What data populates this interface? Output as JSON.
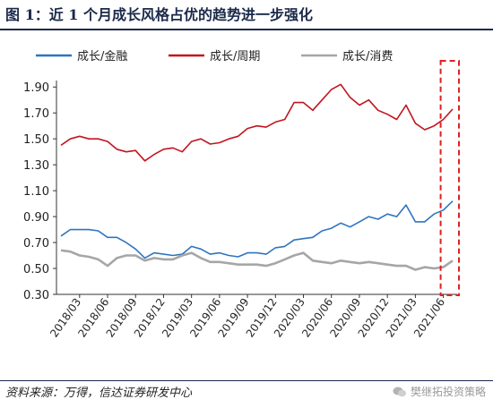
{
  "title": "图 1：近 1 个月成长风格占优的趋势进一步强化",
  "source": "资料来源：万得，信达证券研发中心",
  "watermark": "樊继拓投资策略",
  "chart_data": {
    "type": "line",
    "ylim": [
      0.3,
      1.95
    ],
    "yticks": [
      "0.30",
      "0.50",
      "0.70",
      "0.90",
      "1.10",
      "1.30",
      "1.50",
      "1.70",
      "1.90"
    ],
    "x_dates": [
      "2018/03",
      "2018/06",
      "2018/09",
      "2018/12",
      "2019/03",
      "2019/06",
      "2019/09",
      "2019/12",
      "2020/03",
      "2020/06",
      "2020/09",
      "2020/12",
      "2021/03",
      "2021/06"
    ],
    "highlight_box": {
      "from": "2021/06",
      "to": "2021/07",
      "color": "#e02020"
    },
    "series": [
      {
        "name": "成长/金融",
        "color": "#2f74c0",
        "points": [
          [
            "2018/01",
            0.75
          ],
          [
            "2018/02",
            0.8
          ],
          [
            "2018/03",
            0.8
          ],
          [
            "2018/04",
            0.8
          ],
          [
            "2018/05",
            0.79
          ],
          [
            "2018/06",
            0.74
          ],
          [
            "2018/07",
            0.74
          ],
          [
            "2018/08",
            0.7
          ],
          [
            "2018/09",
            0.65
          ],
          [
            "2018/10",
            0.58
          ],
          [
            "2018/11",
            0.62
          ],
          [
            "2018/12",
            0.61
          ],
          [
            "2019/01",
            0.6
          ],
          [
            "2019/02",
            0.61
          ],
          [
            "2019/03",
            0.67
          ],
          [
            "2019/04",
            0.65
          ],
          [
            "2019/05",
            0.61
          ],
          [
            "2019/06",
            0.62
          ],
          [
            "2019/07",
            0.6
          ],
          [
            "2019/08",
            0.59
          ],
          [
            "2019/09",
            0.62
          ],
          [
            "2019/10",
            0.62
          ],
          [
            "2019/11",
            0.61
          ],
          [
            "2019/12",
            0.66
          ],
          [
            "2020/01",
            0.67
          ],
          [
            "2020/02",
            0.72
          ],
          [
            "2020/03",
            0.73
          ],
          [
            "2020/04",
            0.74
          ],
          [
            "2020/05",
            0.79
          ],
          [
            "2020/06",
            0.81
          ],
          [
            "2020/07",
            0.85
          ],
          [
            "2020/08",
            0.82
          ],
          [
            "2020/09",
            0.86
          ],
          [
            "2020/10",
            0.9
          ],
          [
            "2020/11",
            0.88
          ],
          [
            "2020/12",
            0.92
          ],
          [
            "2021/01",
            0.9
          ],
          [
            "2021/02",
            0.99
          ],
          [
            "2021/03",
            0.86
          ],
          [
            "2021/04",
            0.86
          ],
          [
            "2021/05",
            0.92
          ],
          [
            "2021/06",
            0.95
          ],
          [
            "2021/07",
            1.02
          ]
        ]
      },
      {
        "name": "成长/周期",
        "color": "#c0161f",
        "points": [
          [
            "2018/01",
            1.45
          ],
          [
            "2018/02",
            1.5
          ],
          [
            "2018/03",
            1.52
          ],
          [
            "2018/04",
            1.5
          ],
          [
            "2018/05",
            1.5
          ],
          [
            "2018/06",
            1.48
          ],
          [
            "2018/07",
            1.42
          ],
          [
            "2018/08",
            1.4
          ],
          [
            "2018/09",
            1.41
          ],
          [
            "2018/10",
            1.33
          ],
          [
            "2018/11",
            1.38
          ],
          [
            "2018/12",
            1.42
          ],
          [
            "2019/01",
            1.43
          ],
          [
            "2019/02",
            1.4
          ],
          [
            "2019/03",
            1.48
          ],
          [
            "2019/04",
            1.5
          ],
          [
            "2019/05",
            1.46
          ],
          [
            "2019/06",
            1.47
          ],
          [
            "2019/07",
            1.5
          ],
          [
            "2019/08",
            1.52
          ],
          [
            "2019/09",
            1.58
          ],
          [
            "2019/10",
            1.6
          ],
          [
            "2019/11",
            1.59
          ],
          [
            "2019/12",
            1.63
          ],
          [
            "2020/01",
            1.65
          ],
          [
            "2020/02",
            1.78
          ],
          [
            "2020/03",
            1.78
          ],
          [
            "2020/04",
            1.72
          ],
          [
            "2020/05",
            1.8
          ],
          [
            "2020/06",
            1.88
          ],
          [
            "2020/07",
            1.92
          ],
          [
            "2020/08",
            1.82
          ],
          [
            "2020/09",
            1.76
          ],
          [
            "2020/10",
            1.8
          ],
          [
            "2020/11",
            1.72
          ],
          [
            "2020/12",
            1.69
          ],
          [
            "2021/01",
            1.65
          ],
          [
            "2021/02",
            1.76
          ],
          [
            "2021/03",
            1.62
          ],
          [
            "2021/04",
            1.57
          ],
          [
            "2021/05",
            1.6
          ],
          [
            "2021/06",
            1.65
          ],
          [
            "2021/07",
            1.73
          ]
        ]
      },
      {
        "name": "成长/消费",
        "color": "#a6a6a6",
        "points": [
          [
            "2018/01",
            0.64
          ],
          [
            "2018/02",
            0.63
          ],
          [
            "2018/03",
            0.6
          ],
          [
            "2018/04",
            0.59
          ],
          [
            "2018/05",
            0.57
          ],
          [
            "2018/06",
            0.52
          ],
          [
            "2018/07",
            0.58
          ],
          [
            "2018/08",
            0.6
          ],
          [
            "2018/09",
            0.6
          ],
          [
            "2018/10",
            0.56
          ],
          [
            "2018/11",
            0.58
          ],
          [
            "2018/12",
            0.57
          ],
          [
            "2019/01",
            0.57
          ],
          [
            "2019/02",
            0.6
          ],
          [
            "2019/03",
            0.62
          ],
          [
            "2019/04",
            0.58
          ],
          [
            "2019/05",
            0.55
          ],
          [
            "2019/06",
            0.55
          ],
          [
            "2019/07",
            0.54
          ],
          [
            "2019/08",
            0.53
          ],
          [
            "2019/09",
            0.53
          ],
          [
            "2019/10",
            0.53
          ],
          [
            "2019/11",
            0.52
          ],
          [
            "2019/12",
            0.54
          ],
          [
            "2020/01",
            0.57
          ],
          [
            "2020/02",
            0.6
          ],
          [
            "2020/03",
            0.62
          ],
          [
            "2020/04",
            0.56
          ],
          [
            "2020/05",
            0.55
          ],
          [
            "2020/06",
            0.54
          ],
          [
            "2020/07",
            0.56
          ],
          [
            "2020/08",
            0.55
          ],
          [
            "2020/09",
            0.54
          ],
          [
            "2020/10",
            0.55
          ],
          [
            "2020/11",
            0.54
          ],
          [
            "2020/12",
            0.53
          ],
          [
            "2021/01",
            0.52
          ],
          [
            "2021/02",
            0.52
          ],
          [
            "2021/03",
            0.49
          ],
          [
            "2021/04",
            0.51
          ],
          [
            "2021/05",
            0.5
          ],
          [
            "2021/06",
            0.51
          ],
          [
            "2021/07",
            0.56
          ]
        ]
      }
    ]
  }
}
